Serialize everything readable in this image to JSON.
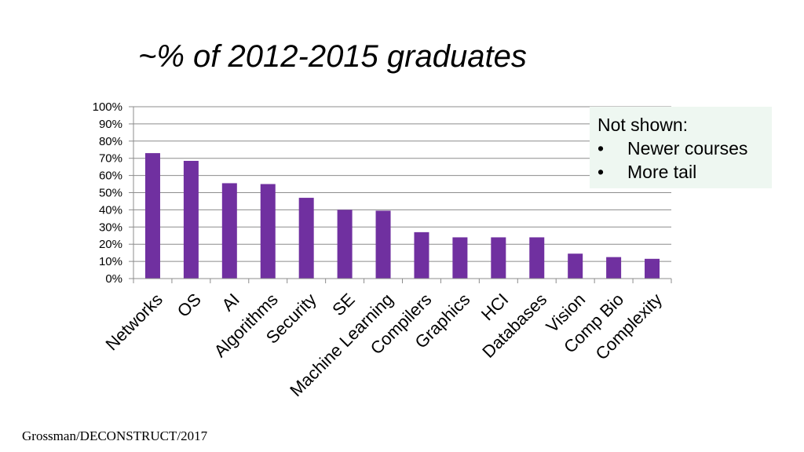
{
  "slide": {
    "title": "~% of 2012-2015 graduates",
    "footer": "Grossman/DECONSTRUCT/2017"
  },
  "callout": {
    "heading": "Not shown:",
    "items": [
      "Newer courses",
      "More tail"
    ],
    "bullet": "•",
    "background": "#eef7f1"
  },
  "chart_data": {
    "type": "bar",
    "title": "~% of 2012-2015 graduates",
    "xlabel": "",
    "ylabel": "",
    "categories": [
      "Networks",
      "OS",
      "AI",
      "Algorithms",
      "Security",
      "SE",
      "Machine Learning",
      "Compilers",
      "Graphics",
      "HCI",
      "Databases",
      "Vision",
      "Comp Bio",
      "Complexity"
    ],
    "values": [
      73,
      68.5,
      55.5,
      55,
      47,
      40,
      39.5,
      27,
      24,
      24,
      24,
      14.5,
      12.5,
      11.5
    ],
    "ylim": [
      0,
      100
    ],
    "yticks": [
      0,
      10,
      20,
      30,
      40,
      50,
      60,
      70,
      80,
      90,
      100
    ],
    "ytick_labels": [
      "0%",
      "10%",
      "20%",
      "30%",
      "40%",
      "50%",
      "60%",
      "70%",
      "80%",
      "90%",
      "100%"
    ],
    "grid": true,
    "legend": "none",
    "bar_color": "#7030a0",
    "grid_color": "#8c8c8c"
  }
}
